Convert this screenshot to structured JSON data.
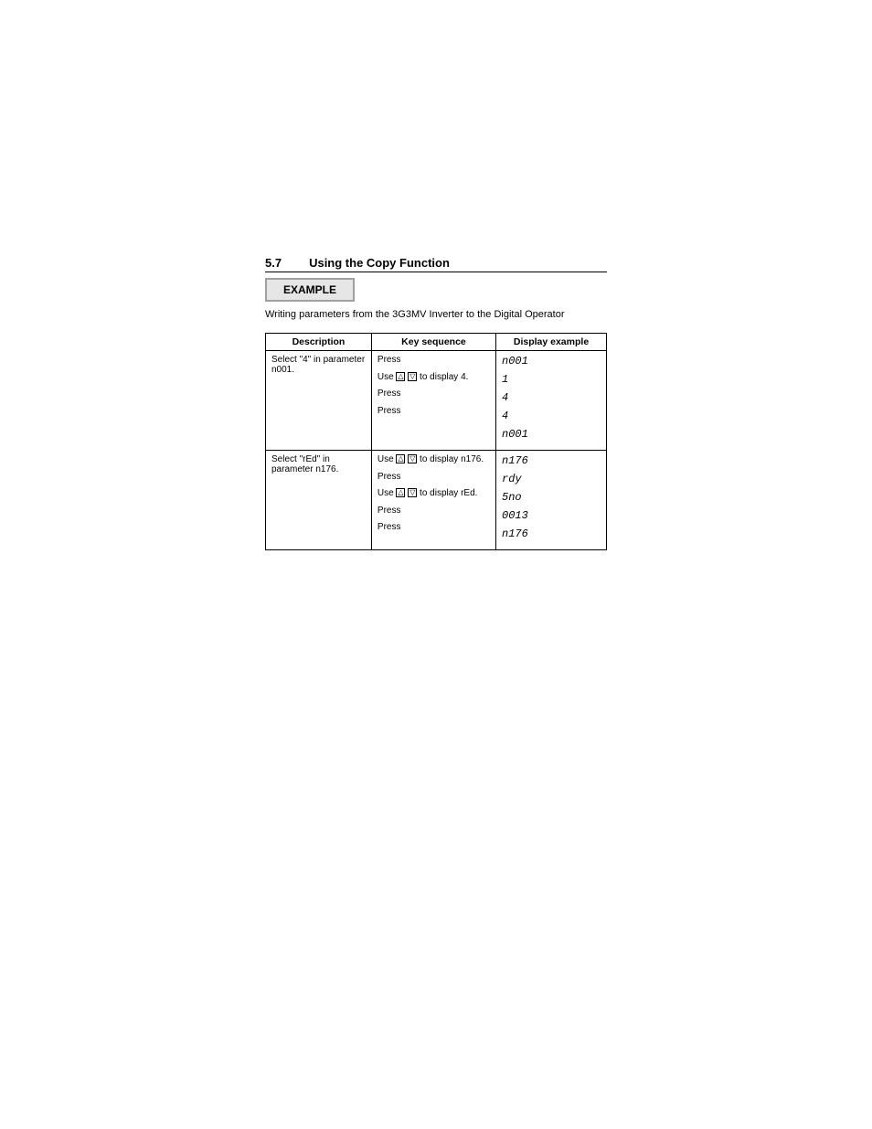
{
  "section": {
    "number": "5.7",
    "title": "Using the Copy Function"
  },
  "example_label": "EXAMPLE",
  "intro": "Writing parameters from the 3G3MV Inverter to the Digital Operator",
  "table": {
    "head": {
      "c1": "Description",
      "c2": "Key sequence",
      "c3": "Display example"
    },
    "rows": [
      {
        "desc": "Select \"4\" in parameter n001.",
        "steps": [
          {
            "text": "Press"
          },
          {
            "text": "Use",
            "arrows": true,
            "tail": "to display 4."
          },
          {
            "text": "Press"
          },
          {
            "text": "Press"
          }
        ],
        "disp": [
          "n001",
          "1",
          "4",
          "4",
          "n001"
        ]
      },
      {
        "desc": "Select \"rEd\" in parameter n176.",
        "steps": [
          {
            "text": "Use",
            "arrows": true,
            "tail": "to display n176."
          },
          {
            "text": "Press"
          },
          {
            "text": "Use",
            "arrows": true,
            "tail": "to display rEd."
          },
          {
            "text": "Press"
          },
          {
            "text": "Press"
          }
        ],
        "disp": [
          "n176",
          "rdy",
          "5no",
          "0013",
          "n176"
        ]
      }
    ]
  },
  "arrow_up": "△",
  "arrow_down": "▽"
}
